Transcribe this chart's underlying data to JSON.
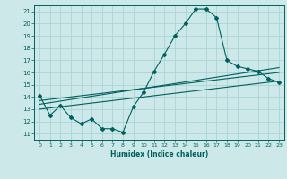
{
  "xlabel": "Humidex (Indice chaleur)",
  "background_color": "#cde8e8",
  "grid_color": "#aad4d4",
  "line_color": "#006060",
  "xlim": [
    -0.5,
    23.5
  ],
  "ylim": [
    10.5,
    21.5
  ],
  "xticks": [
    0,
    1,
    2,
    3,
    4,
    5,
    6,
    7,
    8,
    9,
    10,
    11,
    12,
    13,
    14,
    15,
    16,
    17,
    18,
    19,
    20,
    21,
    22,
    23
  ],
  "yticks": [
    11,
    12,
    13,
    14,
    15,
    16,
    17,
    18,
    19,
    20,
    21
  ],
  "main_x": [
    0,
    1,
    2,
    3,
    4,
    5,
    6,
    7,
    8,
    9,
    10,
    11,
    12,
    13,
    14,
    15,
    16,
    17,
    18,
    19,
    20,
    21,
    22,
    23
  ],
  "main_y": [
    14.1,
    12.5,
    13.3,
    12.3,
    11.8,
    12.2,
    11.4,
    11.4,
    11.1,
    13.2,
    14.4,
    16.1,
    17.5,
    19.0,
    20.0,
    21.2,
    21.2,
    20.5,
    17.0,
    16.5,
    16.3,
    16.1,
    15.5,
    15.2
  ],
  "line1_x": [
    0,
    23
  ],
  "line1_y": [
    13.7,
    16.0
  ],
  "line2_x": [
    0,
    23
  ],
  "line2_y": [
    13.4,
    16.4
  ],
  "line3_x": [
    0,
    23
  ],
  "line3_y": [
    13.0,
    15.3
  ]
}
